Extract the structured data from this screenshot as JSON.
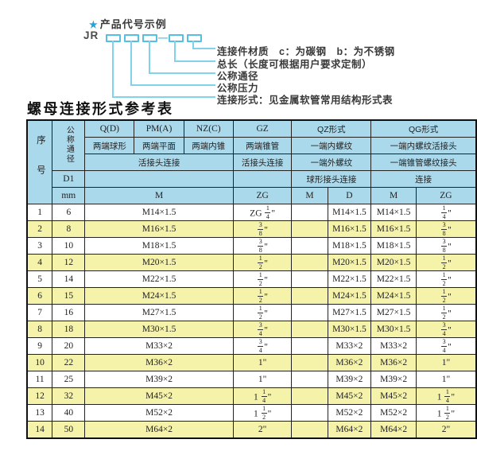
{
  "diagram": {
    "star": "★",
    "title": "产品代号示例",
    "code_prefix": "JR",
    "dash": "—",
    "labels": [
      "连接件材质　c：为碳钢　b：为不锈钢",
      "总长（长度可根据用户要求定制）",
      "公称通径",
      "公称压力",
      "连接形式：见金属软管常用结构形式表"
    ]
  },
  "table": {
    "title": "螺母连接形式参考表",
    "header": {
      "seq": "序号",
      "nominal_diameter": "公称通径",
      "d1": "D1",
      "mm": "mm",
      "col_q": "Q(D)",
      "col_pm": "PM(A)",
      "col_nz": "NZ(C)",
      "col_gz": "GZ",
      "col_qz": "QZ形式",
      "col_qg": "QG形式",
      "q_desc": "两端球形",
      "pm_desc": "两端平面",
      "nz_desc": "两端内锥",
      "gz_desc": "两端锥管",
      "qz_desc": "一端内螺纹",
      "qg_desc": "一端内螺纹活接头",
      "union_conn": "活接头连接",
      "gz_conn": "活接头连接",
      "qz_desc2": "一端外螺纹",
      "qg_desc2": "一端锥管螺纹接头",
      "qz_conn": "球形接头连接",
      "qg_conn": "连接",
      "m": "M",
      "zg": "ZG",
      "qz_m": "M",
      "qz_d": "D",
      "qg_m": "M",
      "qg_zg": "ZG"
    },
    "rows": [
      {
        "seq": "1",
        "mm": "6",
        "m": "M14×1.5",
        "zg": "ZG 1/4\"",
        "qz_m": "",
        "qz_d": "M14×1.5",
        "qg_m": "M14×1.5",
        "qg_zg": "1/4\""
      },
      {
        "seq": "2",
        "mm": "8",
        "m": "M16×1.5",
        "zg": "3/8\"",
        "qz_m": "",
        "qz_d": "M16×1.5",
        "qg_m": "M16×1.5",
        "qg_zg": "3/8\""
      },
      {
        "seq": "3",
        "mm": "10",
        "m": "M18×1.5",
        "zg": "3/8\"",
        "qz_m": "",
        "qz_d": "M18×1.5",
        "qg_m": "M18×1.5",
        "qg_zg": "3/8\""
      },
      {
        "seq": "4",
        "mm": "12",
        "m": "M20×1.5",
        "zg": "1/2\"",
        "qz_m": "",
        "qz_d": "M20×1.5",
        "qg_m": "M20×1.5",
        "qg_zg": "1/2\""
      },
      {
        "seq": "5",
        "mm": "14",
        "m": "M22×1.5",
        "zg": "1/2\"",
        "qz_m": "",
        "qz_d": "M22×1.5",
        "qg_m": "M22×1.5",
        "qg_zg": "1/2\""
      },
      {
        "seq": "6",
        "mm": "15",
        "m": "M24×1.5",
        "zg": "1/2\"",
        "qz_m": "",
        "qz_d": "M24×1.5",
        "qg_m": "M24×1.5",
        "qg_zg": "1/2\""
      },
      {
        "seq": "7",
        "mm": "16",
        "m": "M27×1.5",
        "zg": "1/2\"",
        "qz_m": "",
        "qz_d": "M27×1.5",
        "qg_m": "M27×1.5",
        "qg_zg": "1/2\""
      },
      {
        "seq": "8",
        "mm": "18",
        "m": "M30×1.5",
        "zg": "3/4\"",
        "qz_m": "",
        "qz_d": "M30×1.5",
        "qg_m": "M30×1.5",
        "qg_zg": "3/4\""
      },
      {
        "seq": "9",
        "mm": "20",
        "m": "M33×2",
        "zg": "3/4\"",
        "qz_m": "",
        "qz_d": "M33×2",
        "qg_m": "M33×2",
        "qg_zg": "3/4\""
      },
      {
        "seq": "10",
        "mm": "22",
        "m": "M36×2",
        "zg": "1\"",
        "qz_m": "",
        "qz_d": "M36×2",
        "qg_m": "M36×2",
        "qg_zg": "1\""
      },
      {
        "seq": "11",
        "mm": "25",
        "m": "M39×2",
        "zg": "1\"",
        "qz_m": "",
        "qz_d": "M39×2",
        "qg_m": "M39×2",
        "qg_zg": "1\""
      },
      {
        "seq": "12",
        "mm": "32",
        "m": "M45×2",
        "zg": "1 1/4\"",
        "qz_m": "",
        "qz_d": "M45×2",
        "qg_m": "M45×2",
        "qg_zg": "1 1/4\""
      },
      {
        "seq": "13",
        "mm": "40",
        "m": "M52×2",
        "zg": "1 1/2\"",
        "qz_m": "",
        "qz_d": "M52×2",
        "qg_m": "M52×2",
        "qg_zg": "1 1/2\""
      },
      {
        "seq": "14",
        "mm": "50",
        "m": "M64×2",
        "zg": "2\"",
        "qz_m": "",
        "qz_d": "M64×2",
        "qg_m": "M64×2",
        "qg_zg": "2\""
      }
    ]
  }
}
